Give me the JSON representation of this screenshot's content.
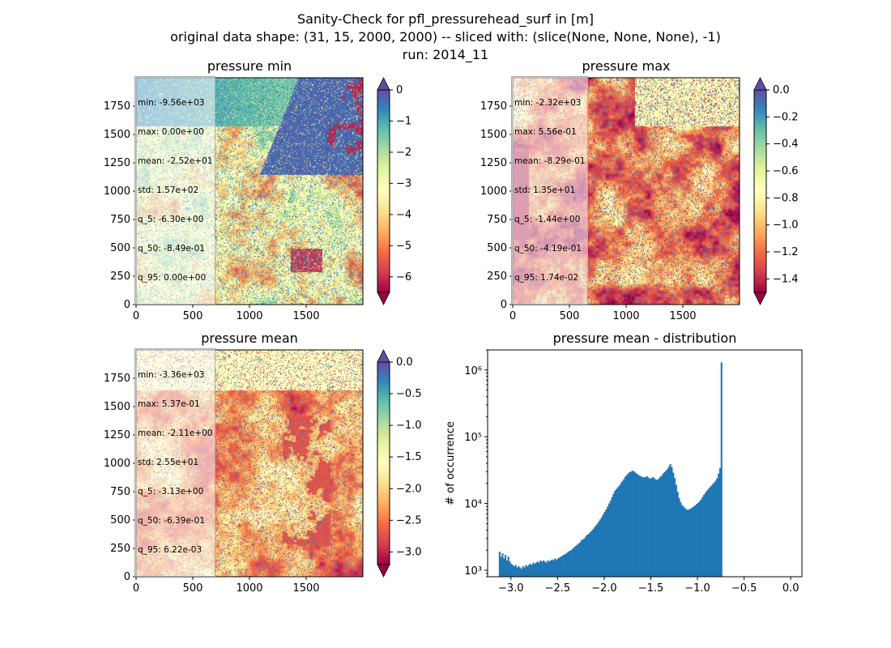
{
  "suptitle": {
    "line1": "Sanity-Check for pfl_pressurehead_surf in [m]",
    "line2": "original data shape: (31, 15, 2000, 2000) -- sliced with: (slice(None, None, None), -1)",
    "line3": "run: 2014_11"
  },
  "colors": {
    "spectral": [
      "#9e0142",
      "#d53e4f",
      "#f46d43",
      "#fdae61",
      "#fee08b",
      "#ffffbf",
      "#e6f598",
      "#abdda4",
      "#66c2a5",
      "#3288bd",
      "#5e4fa2"
    ],
    "hist_bar": "#1f77b4"
  },
  "chart_data": [
    {
      "type": "heatmap",
      "title": "pressure min",
      "colormap": "Spectral",
      "xlim": [
        0,
        2000
      ],
      "ylim": [
        0,
        2000
      ],
      "x_ticks": [
        "0",
        "500",
        "1000",
        "1500"
      ],
      "y_ticks": [
        "0",
        "250",
        "500",
        "750",
        "1000",
        "1250",
        "1500",
        "1750"
      ],
      "colorbar": {
        "min": -6.5,
        "max": 0,
        "ticks": [
          "0",
          "−1",
          "−2",
          "−3",
          "−4",
          "−5",
          "−6"
        ],
        "extend": "both"
      },
      "stats": [
        "min: -9.56e+03",
        "max: 0.00e+00",
        "mean: -2.52e+01",
        "std: 1.57e+02",
        "q_5: -6.30e+00",
        "q_50: -8.49e-01",
        "q_95: 0.00e+00"
      ]
    },
    {
      "type": "heatmap",
      "title": "pressure max",
      "colormap": "Spectral",
      "xlim": [
        0,
        2000
      ],
      "ylim": [
        0,
        2000
      ],
      "x_ticks": [
        "0",
        "500",
        "1000",
        "1500"
      ],
      "y_ticks": [
        "0",
        "250",
        "500",
        "750",
        "1000",
        "1250",
        "1500",
        "1750"
      ],
      "colorbar": {
        "min": -1.5,
        "max": 0,
        "ticks": [
          "0.0",
          "−0.2",
          "−0.4",
          "−0.6",
          "−0.8",
          "−1.0",
          "−1.2",
          "−1.4"
        ],
        "extend": "both"
      },
      "stats": [
        "min: -2.32e+03",
        "max: 5.56e-01",
        "mean: -8.29e-01",
        "std: 1.35e+01",
        "q_5: -1.44e+00",
        "q_50: -4.19e-01",
        "q_95: 1.74e-02"
      ]
    },
    {
      "type": "heatmap",
      "title": "pressure mean",
      "colormap": "Spectral",
      "xlim": [
        0,
        2000
      ],
      "ylim": [
        0,
        2000
      ],
      "x_ticks": [
        "0",
        "500",
        "1000",
        "1500"
      ],
      "y_ticks": [
        "0",
        "250",
        "500",
        "750",
        "1000",
        "1250",
        "1500",
        "1750"
      ],
      "colorbar": {
        "min": -3.2,
        "max": 0,
        "ticks": [
          "0.0",
          "−0.5",
          "−1.0",
          "−1.5",
          "−2.0",
          "−2.5",
          "−3.0"
        ],
        "extend": "both"
      },
      "stats": [
        "min: -3.36e+03",
        "max: 5.37e-01",
        "mean: -2.11e+00",
        "std: 2.55e+01",
        "q_5: -3.13e+00",
        "q_50: -6.39e-01",
        "q_95: 6.22e-03"
      ]
    },
    {
      "type": "bar",
      "title": "pressure mean - distribution",
      "ylabel": "# of occurrence",
      "yscale": "log",
      "xlim": [
        -3.25,
        0.12
      ],
      "ylim": [
        800,
        2000000
      ],
      "x_ticks": [
        "−3.0",
        "−2.5",
        "−2.0",
        "−1.5",
        "−1.0",
        "−0.5",
        "0.0"
      ],
      "y_ticks": [
        "10³",
        "10⁴",
        "10⁵",
        "10⁶"
      ],
      "bin_start": -3.13,
      "bin_width": 0.01565,
      "series": [
        {
          "values": [
            1900,
            1600,
            1800,
            1500,
            1700,
            1400,
            1600,
            1350,
            1250,
            1200,
            1150,
            1200,
            1100,
            1150,
            1100,
            1050,
            1150,
            1100,
            1200,
            1150,
            1200,
            1250,
            1200,
            1300,
            1250,
            1300,
            1350,
            1300,
            1400,
            1350,
            1400,
            1350,
            1300,
            1400,
            1350,
            1400,
            1450,
            1400,
            1500,
            1450,
            1500,
            1550,
            1600,
            1650,
            1700,
            1750,
            1800,
            1900,
            1950,
            2000,
            2100,
            2200,
            2300,
            2400,
            2500,
            2600,
            2800,
            2900,
            3000,
            3200,
            3400,
            3500,
            3700,
            3900,
            4100,
            4400,
            4700,
            5000,
            5400,
            5800,
            6300,
            6900,
            7500,
            8200,
            9000,
            10000,
            11000,
            12500,
            14000,
            15500,
            16500,
            17500,
            18500,
            20000,
            21500,
            23000,
            25000,
            26500,
            28000,
            29500,
            30000,
            31000,
            30500,
            29000,
            28000,
            27000,
            26000,
            25500,
            25000,
            24500,
            25000,
            25500,
            24500,
            23500,
            24000,
            25000,
            24000,
            23000,
            22500,
            23500,
            25000,
            26000,
            28000,
            29500,
            31000,
            33000,
            36000,
            39000,
            35000,
            29000,
            24000,
            19000,
            15000,
            12000,
            10500,
            9500,
            9000,
            8500,
            8200,
            8000,
            8200,
            8400,
            8700,
            9000,
            9400,
            9800,
            10200,
            10800,
            11500,
            12500,
            13500,
            14500,
            15500,
            16500,
            17500,
            18500,
            19500,
            20500,
            22000,
            24000,
            28000,
            34000,
            1300000
          ]
        }
      ]
    }
  ]
}
